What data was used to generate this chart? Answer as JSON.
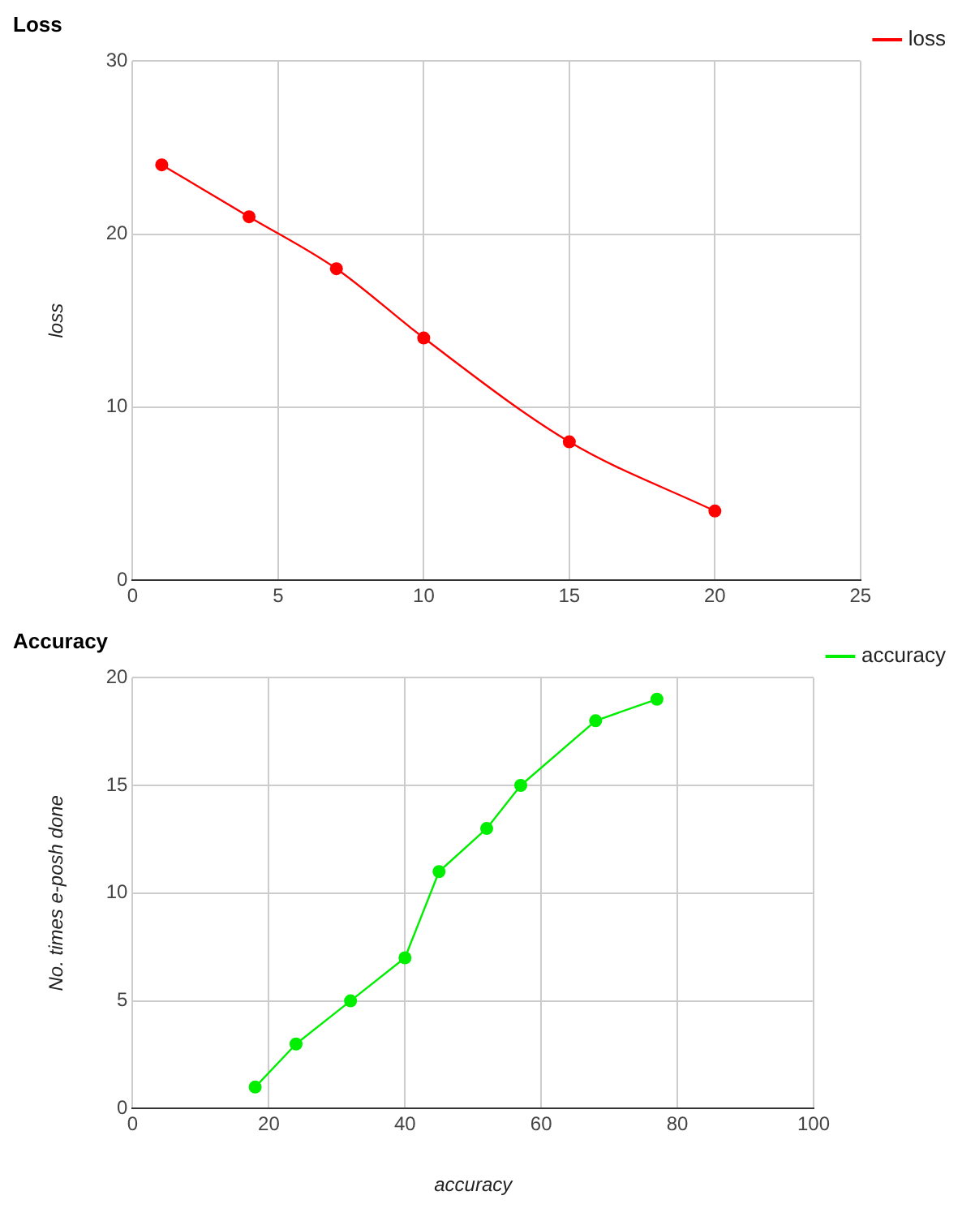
{
  "chart_data": [
    {
      "type": "line",
      "title": "Loss",
      "ylabel": "loss",
      "x": [
        1,
        4,
        7,
        10,
        15,
        20
      ],
      "series": [
        {
          "name": "loss",
          "color": "#ff0000",
          "values": [
            24,
            21,
            18,
            14,
            8,
            4
          ]
        }
      ],
      "xlim": [
        0,
        25
      ],
      "xticks": [
        0,
        5,
        10,
        15,
        20,
        25
      ],
      "ylim": [
        0,
        30
      ],
      "yticks": [
        0,
        10,
        20,
        30
      ],
      "grid": true,
      "legend": "top right",
      "marker": "circle",
      "line_style": "solid"
    },
    {
      "type": "line",
      "title": "Accuracy",
      "xlabel": "accuracy",
      "ylabel": "No. times e-posh done",
      "x": [
        18,
        24,
        32,
        40,
        45,
        52,
        57,
        68,
        77
      ],
      "series": [
        {
          "name": "accuracy",
          "color": "#00ee00",
          "values": [
            1,
            3,
            5,
            7,
            11,
            13,
            15,
            18,
            19
          ]
        }
      ],
      "xlim": [
        0,
        100
      ],
      "xticks": [
        0,
        20,
        40,
        60,
        80,
        100
      ],
      "ylim": [
        0,
        20
      ],
      "yticks": [
        0,
        5,
        10,
        15,
        20
      ],
      "grid": true,
      "legend": "top right",
      "marker": "circle",
      "line_style": "solid"
    }
  ]
}
